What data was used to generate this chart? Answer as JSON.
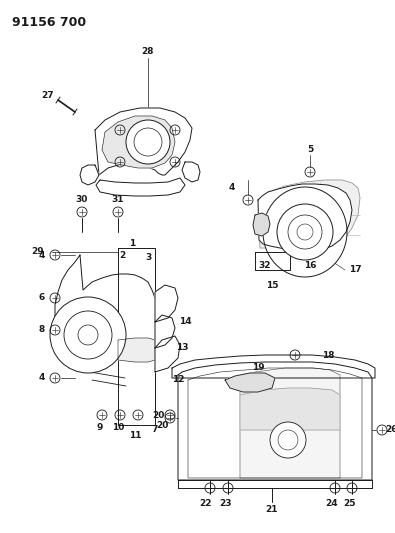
{
  "title": "91156 700",
  "bg_color": "#ffffff",
  "line_color": "#1a1a1a",
  "title_fontsize": 9,
  "label_fontsize": 6.5,
  "figsize": [
    3.95,
    5.33
  ],
  "dpi": 100
}
